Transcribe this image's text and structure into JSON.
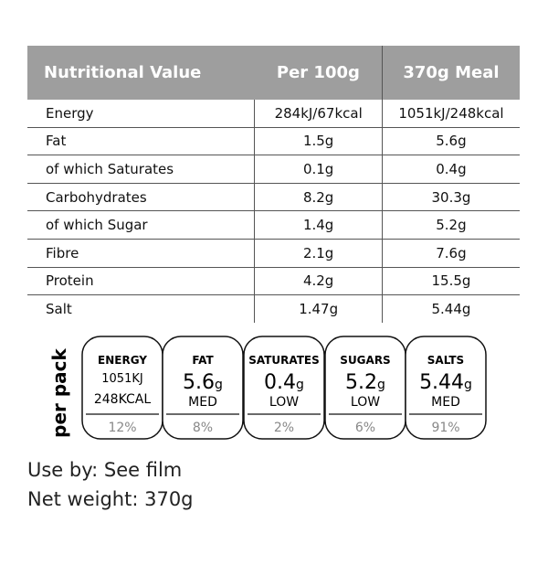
{
  "table": {
    "header": [
      "Nutritional Value",
      "Per 100g",
      "370g Meal"
    ],
    "rows": [
      [
        "Energy",
        "284kJ/67kcal",
        "1051kJ/248kcal"
      ],
      [
        "Fat",
        "1.5g",
        "5.6g"
      ],
      [
        "of which Saturates",
        "0.1g",
        "0.4g"
      ],
      [
        "Carbohydrates",
        "8.2g",
        "30.3g"
      ],
      [
        "of which Sugar",
        "1.4g",
        "5.2g"
      ],
      [
        "Fibre",
        "2.1g",
        "7.6g"
      ],
      [
        "Protein",
        "4.2g",
        "15.5g"
      ],
      [
        "Salt",
        "1.47g",
        "5.44g"
      ]
    ]
  },
  "per_pack": {
    "label": "per pack",
    "badges": [
      {
        "name": "ENERGY",
        "kj": "1051KJ",
        "kcal": "248KCAL",
        "percent": "12%"
      },
      {
        "name": "FAT",
        "amount": "5.6",
        "unit": "g",
        "level": "MED",
        "percent": "8%"
      },
      {
        "name": "SATURATES",
        "amount": "0.4",
        "unit": "g",
        "level": "LOW",
        "percent": "2%"
      },
      {
        "name": "SUGARS",
        "amount": "5.2",
        "unit": "g",
        "level": "LOW",
        "percent": "6%"
      },
      {
        "name": "SALTS",
        "amount": "5.44",
        "unit": "g",
        "level": "MED",
        "percent": "91%"
      }
    ]
  },
  "footer": {
    "use_by": "Use by: See film",
    "net_weight": "Net weight: 370g"
  }
}
